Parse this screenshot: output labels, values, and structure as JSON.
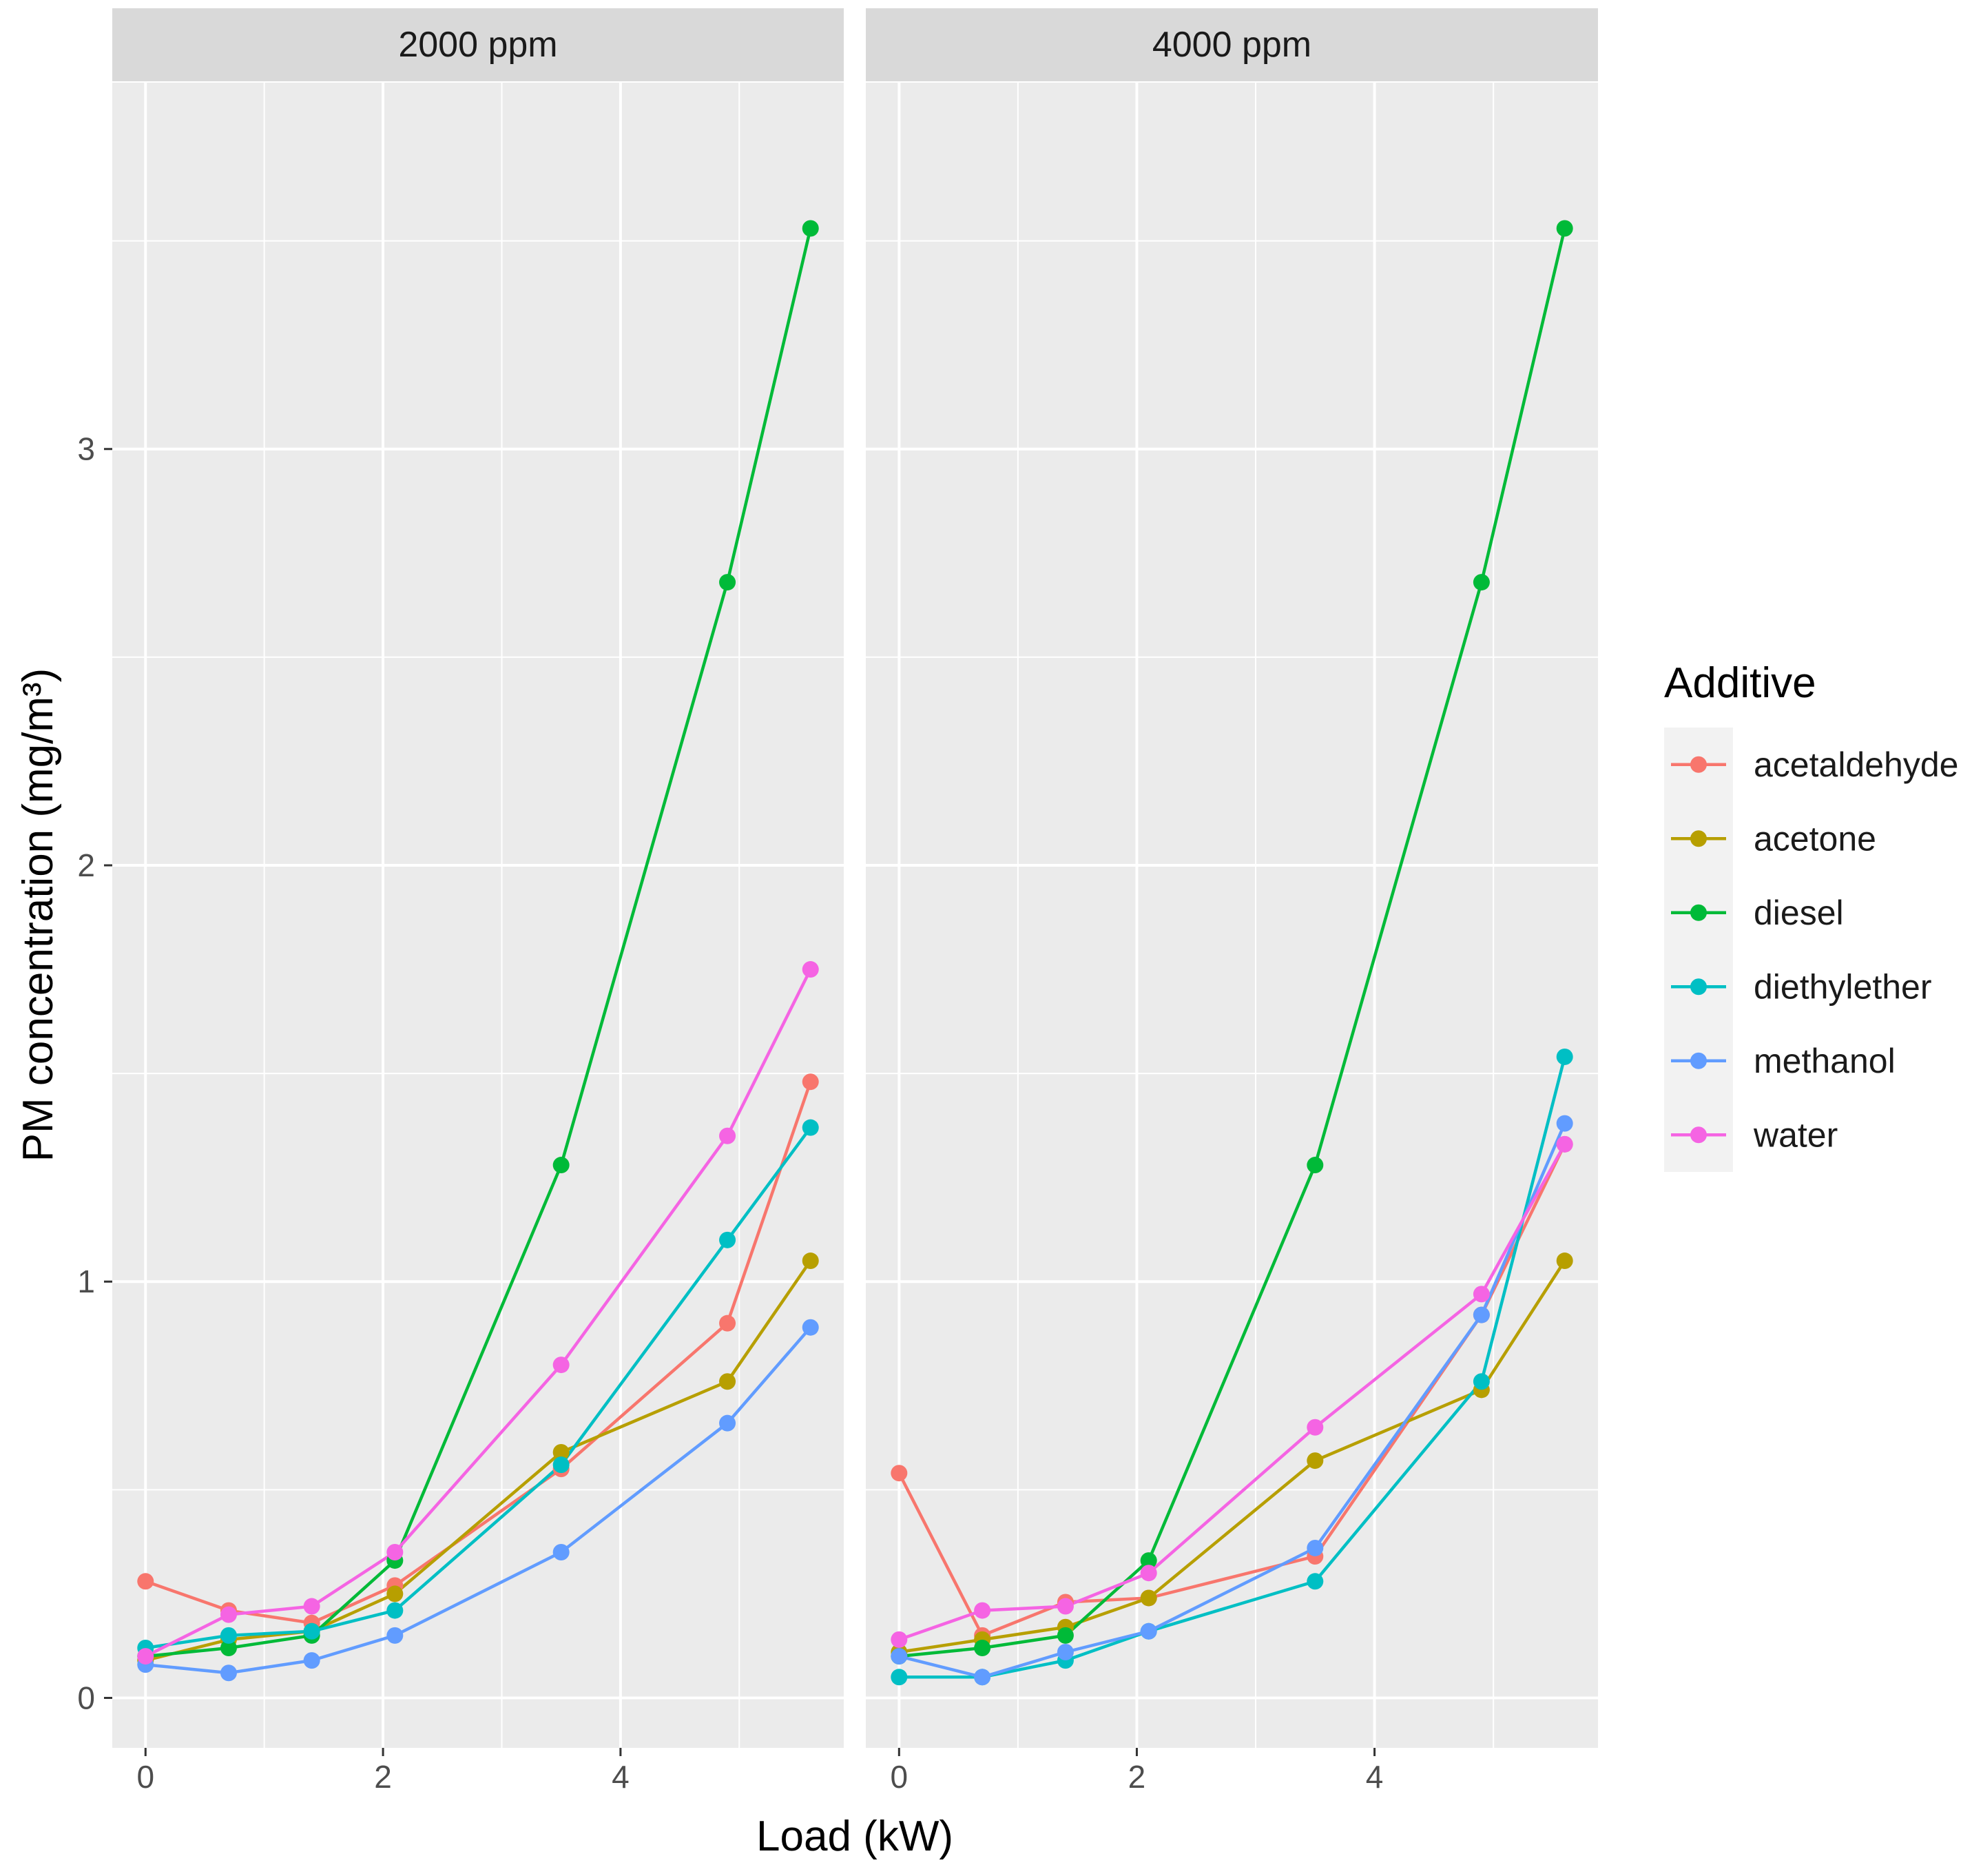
{
  "chart_data": {
    "type": "line",
    "xlabel": "Load (kW)",
    "ylabel": "PM concentration (mg/m³)",
    "xlim": [
      -0.28,
      5.88
    ],
    "ylim": [
      -0.12,
      3.88
    ],
    "x_ticks": [
      0,
      2,
      4
    ],
    "x_tick_labels": [
      "0",
      "2",
      "4"
    ],
    "y_ticks": [
      0,
      1,
      2,
      3
    ],
    "y_tick_labels": [
      "0",
      "1",
      "2",
      "3"
    ],
    "legend": {
      "title": "Additive",
      "position": "right"
    },
    "x": [
      0,
      0.7,
      1.4,
      2.1,
      3.5,
      4.9,
      5.6
    ],
    "colors": {
      "acetaldehyde": "#F8766D",
      "acetone": "#B79F00",
      "diesel": "#00BA38",
      "diethylether": "#00BFC4",
      "methanol": "#619CFF",
      "water": "#F564E3"
    },
    "facets": [
      {
        "label": "2000 ppm",
        "series": [
          {
            "name": "acetaldehyde",
            "values": [
              0.28,
              0.21,
              0.18,
              0.27,
              0.55,
              0.9,
              1.48
            ]
          },
          {
            "name": "acetone",
            "values": [
              0.09,
              0.14,
              0.16,
              0.25,
              0.59,
              0.76,
              1.05
            ]
          },
          {
            "name": "diesel",
            "values": [
              0.1,
              0.12,
              0.15,
              0.33,
              1.28,
              2.68,
              3.53
            ]
          },
          {
            "name": "diethylether",
            "values": [
              0.12,
              0.15,
              0.16,
              0.21,
              0.56,
              1.1,
              1.37
            ]
          },
          {
            "name": "methanol",
            "values": [
              0.08,
              0.06,
              0.09,
              0.15,
              0.35,
              0.66,
              0.89
            ]
          },
          {
            "name": "water",
            "values": [
              0.1,
              0.2,
              0.22,
              0.35,
              0.8,
              1.35,
              1.75
            ]
          }
        ]
      },
      {
        "label": "4000 ppm",
        "series": [
          {
            "name": "acetaldehyde",
            "values": [
              0.54,
              0.15,
              0.23,
              0.24,
              0.34,
              0.92,
              1.33
            ]
          },
          {
            "name": "acetone",
            "values": [
              0.11,
              0.14,
              0.17,
              0.24,
              0.57,
              0.74,
              1.05
            ]
          },
          {
            "name": "diesel",
            "values": [
              0.1,
              0.12,
              0.15,
              0.33,
              1.28,
              2.68,
              3.53
            ]
          },
          {
            "name": "diethylether",
            "values": [
              0.05,
              0.05,
              0.09,
              0.16,
              0.28,
              0.76,
              1.54
            ]
          },
          {
            "name": "methanol",
            "values": [
              0.1,
              0.05,
              0.11,
              0.16,
              0.36,
              0.92,
              1.38
            ]
          },
          {
            "name": "water",
            "values": [
              0.14,
              0.21,
              0.22,
              0.3,
              0.65,
              0.97,
              1.33
            ]
          }
        ]
      }
    ]
  }
}
